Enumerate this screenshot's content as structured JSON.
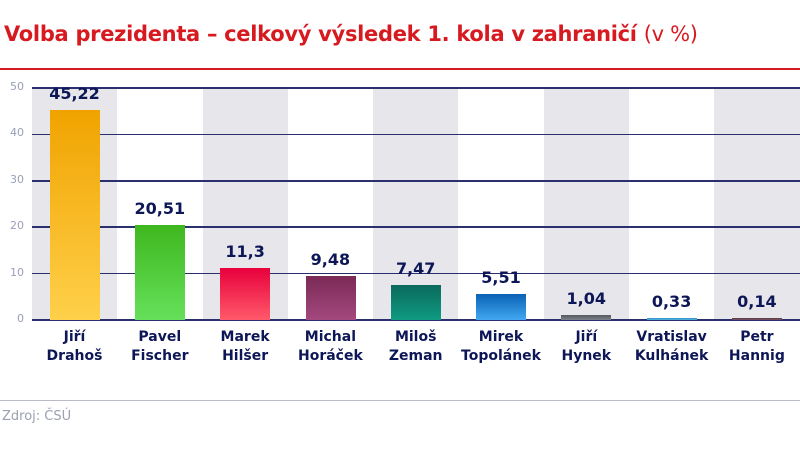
{
  "header": {
    "title": "Volba prezidenta – celkový výsledek 1. kola v zahraničí",
    "unit": "(v %)"
  },
  "footer": {
    "source": "Zdroj: ČSÚ"
  },
  "colors": {
    "title": "#d71920",
    "label": "#0d1656",
    "grid": "#2a2f6e",
    "band": "#e6e6eb"
  },
  "chart_data": {
    "type": "bar",
    "title": "Volba prezidenta – celkový výsledek 1. kola v zahraničí (v %)",
    "xlabel": "",
    "ylabel": "",
    "ylim": [
      0,
      50
    ],
    "yticks": [
      0,
      10,
      20,
      30,
      40,
      50
    ],
    "grid": true,
    "legend": null,
    "categories": [
      "Jiří Drahoš",
      "Pavel Fischer",
      "Marek Hilšer",
      "Michal Horáček",
      "Miloš Zeman",
      "Mirek Topolánek",
      "Jiří Hynek",
      "Vratislav Kulhánek",
      "Petr Hannig"
    ],
    "values": [
      45.22,
      20.51,
      11.3,
      9.48,
      7.47,
      5.51,
      1.04,
      0.33,
      0.14
    ],
    "value_labels": [
      "45,22",
      "20,51",
      "11,3",
      "9,48",
      "7,47",
      "5,51",
      "1,04",
      "0,33",
      "0,14"
    ],
    "bar_colors": [
      [
        "#f0a300",
        "#ffd04a"
      ],
      [
        "#3eb71e",
        "#66e05a"
      ],
      [
        "#e8003c",
        "#ff5a6a"
      ],
      [
        "#7a2a55",
        "#a4487f"
      ],
      [
        "#0b6a5b",
        "#0f9a82"
      ],
      [
        "#0a62b5",
        "#41a8f0"
      ],
      [
        "#555a60",
        "#7d8288"
      ],
      [
        "#2f8fc2",
        "#55b6e0"
      ],
      [
        "#5a3a46",
        "#7a5464"
      ]
    ],
    "source": "Zdroj: ČSÚ"
  },
  "candidates": [
    {
      "first": "Jiří",
      "last": "Drahoš",
      "label": "45,22"
    },
    {
      "first": "Pavel",
      "last": "Fischer",
      "label": "20,51"
    },
    {
      "first": "Marek",
      "last": "Hilšer",
      "label": "11,3"
    },
    {
      "first": "Michal",
      "last": "Horáček",
      "label": "9,48"
    },
    {
      "first": "Miloš",
      "last": "Zeman",
      "label": "7,47"
    },
    {
      "first": "Mirek",
      "last": "Topolánek",
      "label": "5,51"
    },
    {
      "first": "Jiří",
      "last": "Hynek",
      "label": "1,04"
    },
    {
      "first": "Vratislav",
      "last": "Kulhánek",
      "label": "0,33"
    },
    {
      "first": "Petr",
      "last": "Hannig",
      "label": "0,14"
    }
  ],
  "axis": {
    "ticks": [
      "0",
      "10",
      "20",
      "30",
      "40",
      "50"
    ]
  }
}
